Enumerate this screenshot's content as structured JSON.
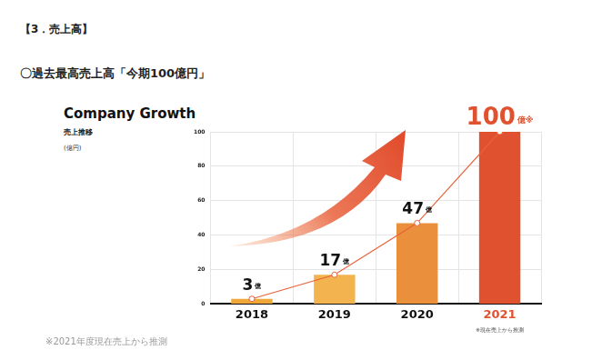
{
  "page": {
    "heading": "【3．売上高】",
    "headline": "〇過去最高売上高「今期100億円」",
    "footnote": "※2021年度現在売上から推測"
  },
  "chart_data": {
    "type": "bar",
    "title": "Company Growth",
    "subtitle": "売上推移",
    "y_label": "(億円)",
    "categories": [
      "2018",
      "2019",
      "2020",
      "2021"
    ],
    "series": [
      {
        "type": "bar",
        "values": [
          3,
          17,
          47,
          100
        ],
        "value_labels": [
          "3億",
          "17億",
          "47億",
          "100億※"
        ],
        "colors": [
          "#f0a73a",
          "#f3b34e",
          "#ea8f3c",
          "#e0522f"
        ]
      },
      {
        "type": "line",
        "values": [
          3,
          17,
          47,
          100
        ],
        "color": "#e8623a",
        "marker": "circle",
        "line_style": "solid"
      }
    ],
    "ylim": [
      0,
      100
    ],
    "yticks": [
      0,
      20,
      40,
      60,
      80,
      100
    ],
    "grid": true,
    "data_labels": true,
    "legend": false,
    "annotations": [
      {
        "category": "2021",
        "text": "※現在売上から推測"
      }
    ]
  }
}
